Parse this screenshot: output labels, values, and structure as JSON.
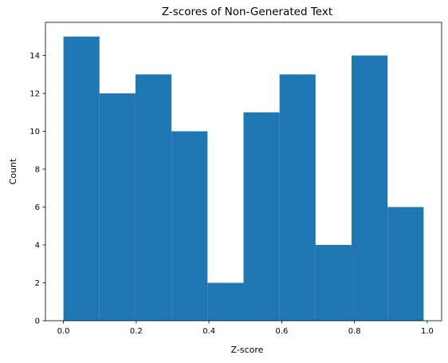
{
  "chart_data": {
    "type": "bar",
    "title": "Z-scores of Non-Generated Text",
    "xlabel": "Z-score",
    "ylabel": "Count",
    "bins": [
      {
        "x0": 0.0,
        "x1": 0.099,
        "count": 15
      },
      {
        "x0": 0.099,
        "x1": 0.198,
        "count": 12
      },
      {
        "x0": 0.198,
        "x1": 0.297,
        "count": 13
      },
      {
        "x0": 0.297,
        "x1": 0.396,
        "count": 10
      },
      {
        "x0": 0.396,
        "x1": 0.495,
        "count": 2
      },
      {
        "x0": 0.495,
        "x1": 0.594,
        "count": 11
      },
      {
        "x0": 0.594,
        "x1": 0.693,
        "count": 13
      },
      {
        "x0": 0.693,
        "x1": 0.792,
        "count": 4
      },
      {
        "x0": 0.792,
        "x1": 0.891,
        "count": 14
      },
      {
        "x0": 0.891,
        "x1": 0.99,
        "count": 6
      }
    ],
    "xlim": [
      -0.0495,
      1.0395
    ],
    "ylim": [
      0,
      15.75
    ],
    "xticks": [
      {
        "value": 0.0,
        "label": "0.0"
      },
      {
        "value": 0.2,
        "label": "0.2"
      },
      {
        "value": 0.4,
        "label": "0.4"
      },
      {
        "value": 0.6,
        "label": "0.6"
      },
      {
        "value": 0.8,
        "label": "0.8"
      },
      {
        "value": 1.0,
        "label": "1.0"
      }
    ],
    "yticks": [
      {
        "value": 0,
        "label": "0"
      },
      {
        "value": 2,
        "label": "2"
      },
      {
        "value": 4,
        "label": "4"
      },
      {
        "value": 6,
        "label": "6"
      },
      {
        "value": 8,
        "label": "8"
      },
      {
        "value": 10,
        "label": "10"
      },
      {
        "value": 12,
        "label": "12"
      },
      {
        "value": 14,
        "label": "14"
      }
    ],
    "grid": false,
    "color": "#1f77b4"
  }
}
